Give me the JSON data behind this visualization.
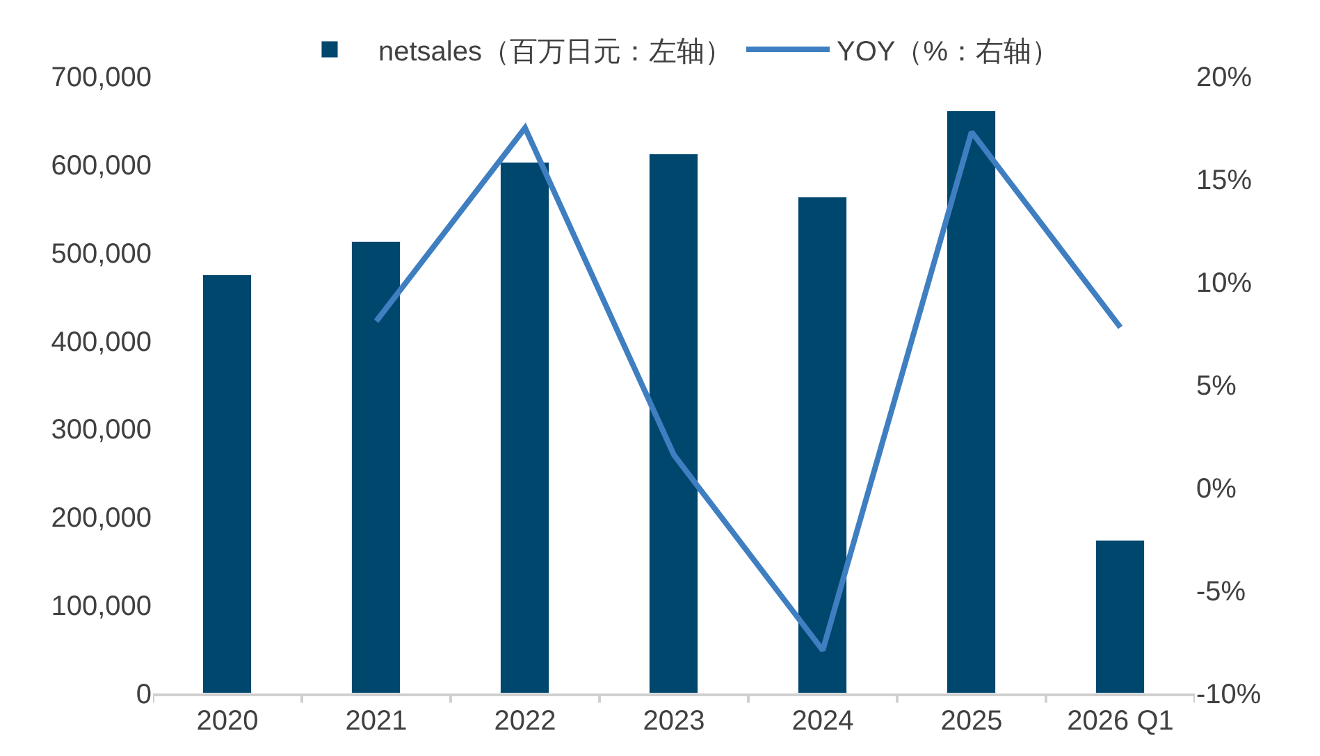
{
  "chart_data": {
    "type": "bar",
    "categories": [
      "2020",
      "2021",
      "2022",
      "2023",
      "2024",
      "2025",
      "2026 Q1"
    ],
    "series": [
      {
        "name": "netsales（百万日元：左轴）",
        "color": "#00476e",
        "values": [
          474000,
          513000,
          602000,
          612000,
          563000,
          661000,
          174000
        ]
      },
      {
        "name": "YOY（%：右轴）",
        "color": "#3f7fc1",
        "type": "line",
        "axis": "y2",
        "values": [
          null,
          8.1,
          17.5,
          1.6,
          -7.9,
          17.3,
          7.8
        ]
      }
    ],
    "ylim": [
      0,
      700000
    ],
    "yticks": [
      {
        "value": 0,
        "label": "0"
      },
      {
        "value": 100000,
        "label": "100,000"
      },
      {
        "value": 200000,
        "label": "200,000"
      },
      {
        "value": 300000,
        "label": "300,000"
      },
      {
        "value": 400000,
        "label": "400,000"
      },
      {
        "value": 500000,
        "label": "500,000"
      },
      {
        "value": 600000,
        "label": "600,000"
      },
      {
        "value": 700000,
        "label": "700,000"
      }
    ],
    "y2lim": [
      -10,
      20
    ],
    "y2ticks": [
      {
        "value": -10,
        "label": "-10%"
      },
      {
        "value": -5,
        "label": "-5%"
      },
      {
        "value": 0,
        "label": "0%"
      },
      {
        "value": 5,
        "label": "5%"
      },
      {
        "value": 10,
        "label": "10%"
      },
      {
        "value": 15,
        "label": "15%"
      },
      {
        "value": 20,
        "label": "20%"
      }
    ],
    "legend": "top",
    "marker": "none",
    "line_style": "solid"
  }
}
